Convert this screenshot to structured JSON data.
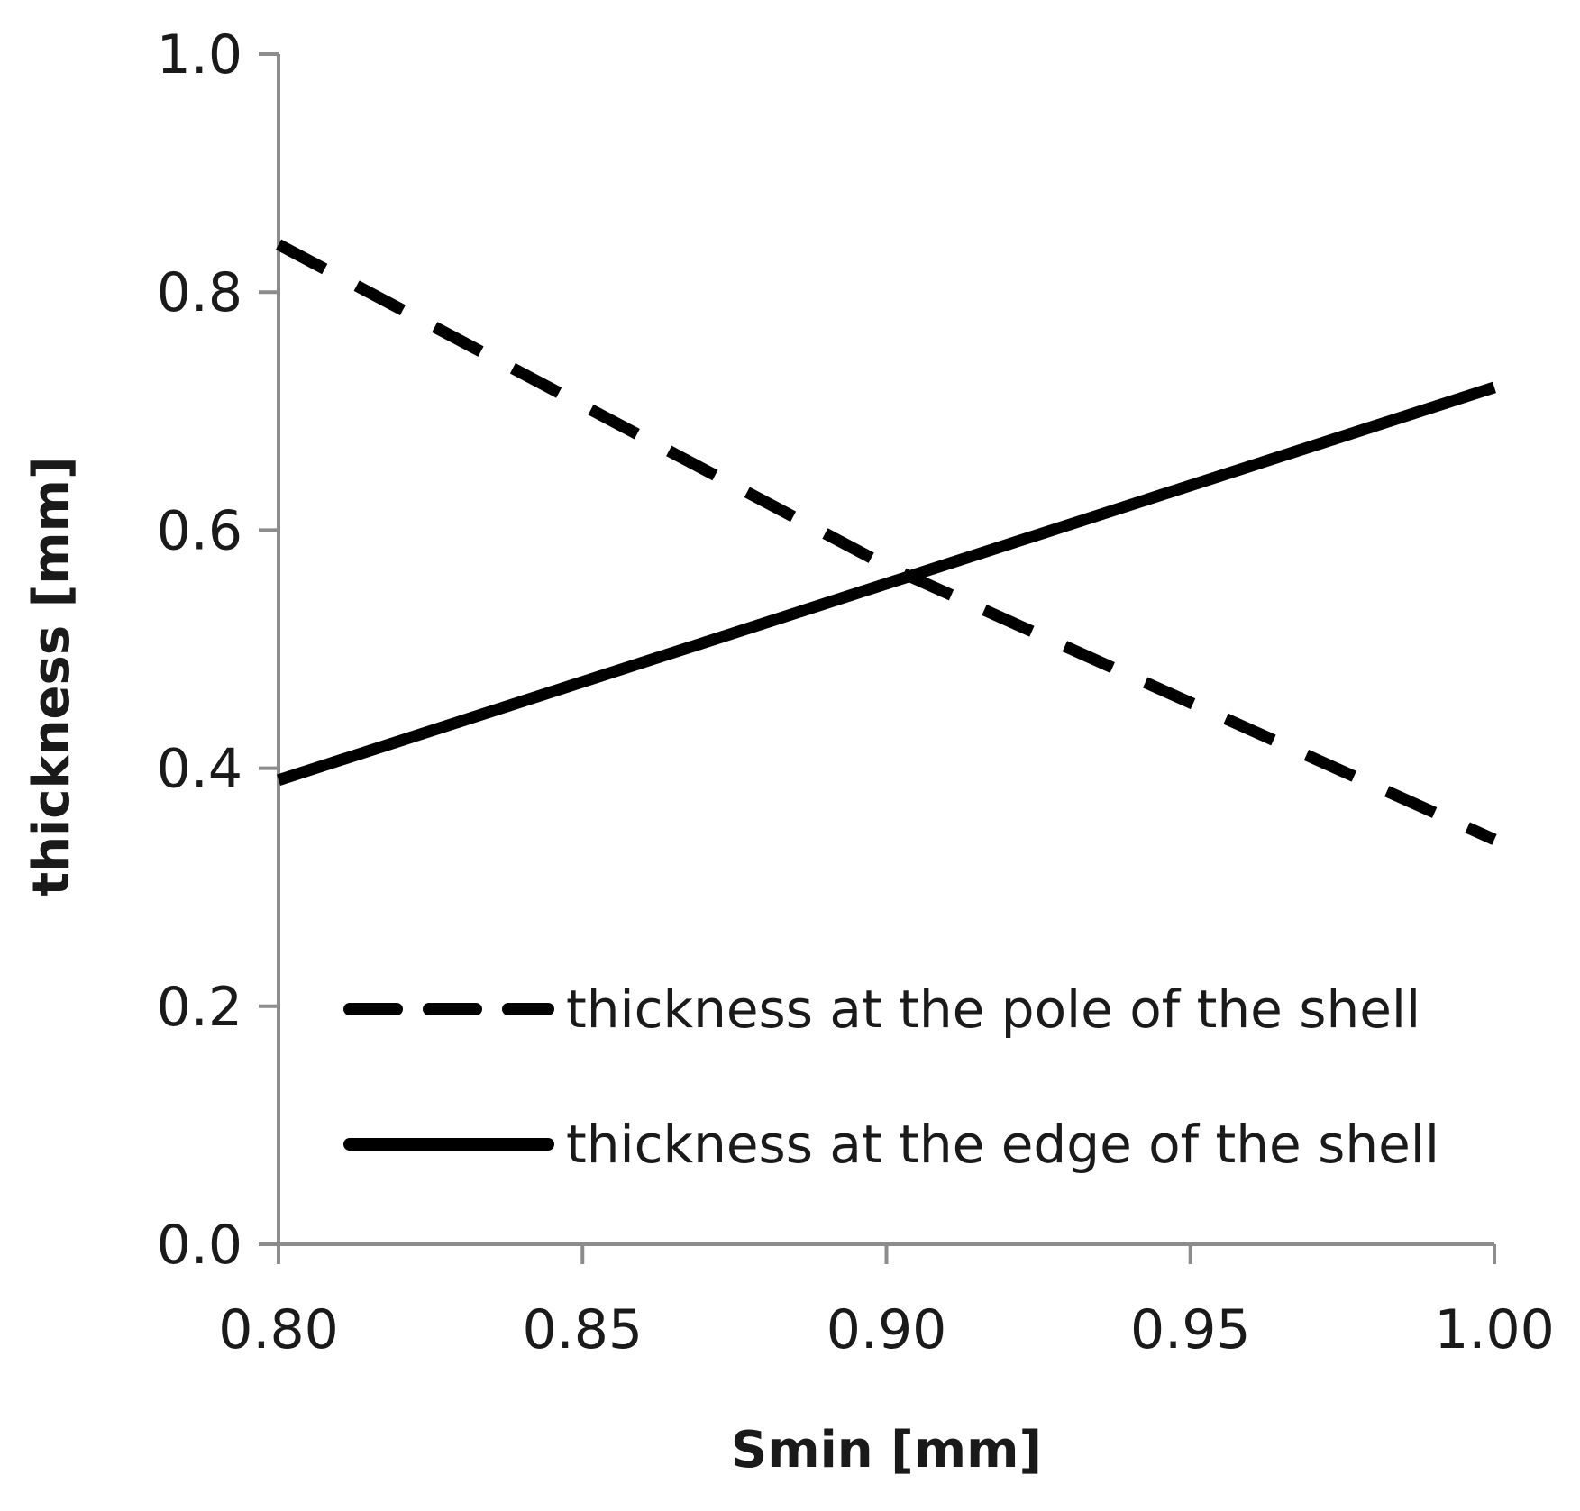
{
  "chart_data": {
    "type": "line",
    "title": "",
    "xlabel": "Smin [mm]",
    "ylabel": "thickness [mm]",
    "xlim": [
      0.8,
      1.0
    ],
    "ylim": [
      0.0,
      1.0
    ],
    "x_ticks": [
      "0.80",
      "0.85",
      "0.90",
      "0.95",
      "1.00"
    ],
    "x_tick_values": [
      0.8,
      0.85,
      0.9,
      0.95,
      1.0
    ],
    "y_ticks": [
      "0.0",
      "0.2",
      "0.4",
      "0.6",
      "0.8",
      "1.0"
    ],
    "y_tick_values": [
      0.0,
      0.2,
      0.4,
      0.6,
      0.8,
      1.0
    ],
    "grid": false,
    "legend_position": "bottom-right",
    "series": [
      {
        "name": "thickness at the pole of the shell",
        "style": "dashed",
        "color": "#000000",
        "x": [
          0.8,
          0.9,
          1.0
        ],
        "y": [
          0.84,
          0.57,
          0.34
        ]
      },
      {
        "name": "thickness at the edge of the shell",
        "style": "solid",
        "color": "#000000",
        "x": [
          0.8,
          0.9,
          1.0
        ],
        "y": [
          0.39,
          0.555,
          0.72
        ]
      }
    ]
  }
}
